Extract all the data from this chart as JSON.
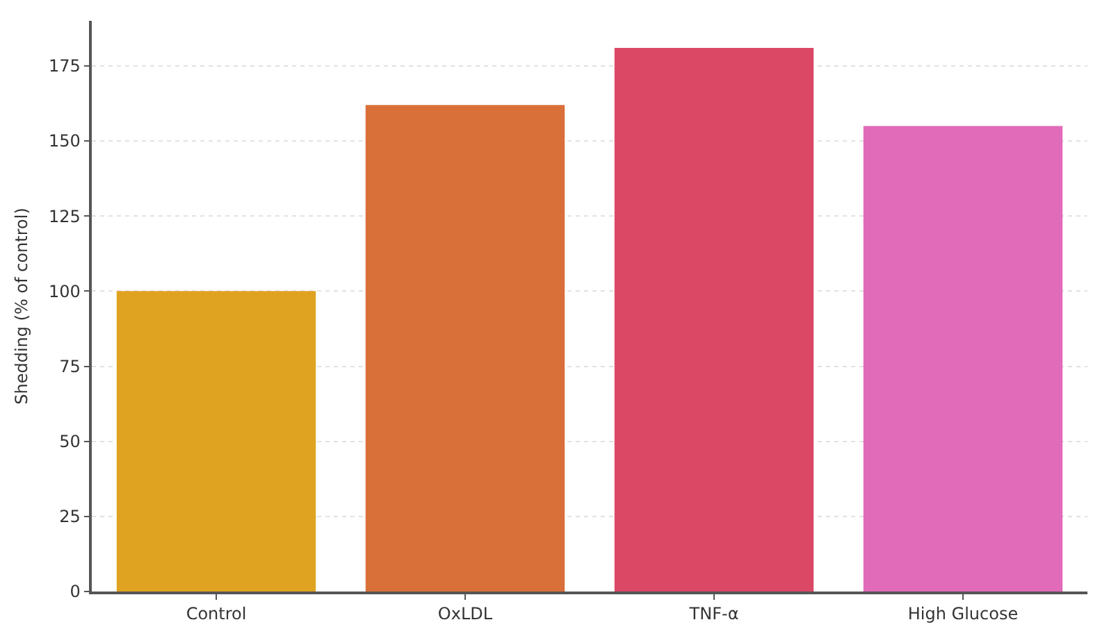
{
  "chart_data": {
    "type": "bar",
    "ylabel": "Shedding (% of control)",
    "categories": [
      "Control",
      "OxLDL",
      "TNF-α",
      "High Glucose"
    ],
    "values": [
      100,
      162,
      181,
      155
    ],
    "colors": [
      "#dfa221",
      "#d9703a",
      "#db4866",
      "#e16ab9"
    ],
    "ylim": [
      0,
      190
    ],
    "yticks": [
      0,
      25,
      50,
      75,
      100,
      125,
      150,
      175
    ],
    "grid": "y"
  }
}
